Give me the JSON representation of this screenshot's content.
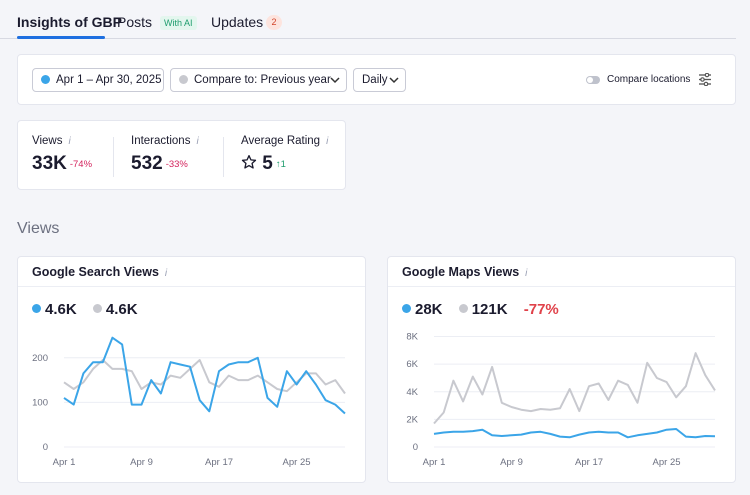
{
  "tabs": [
    {
      "label": "Insights of GBP"
    },
    {
      "label": "Posts",
      "badge": "With AI"
    },
    {
      "label": "Updates",
      "badge": "2"
    }
  ],
  "filters": {
    "date_range": "Apr 1 – Apr 30, 2025",
    "compare": "Compare to: Previous year",
    "granularity": "Daily",
    "compare_locations": "Compare locations"
  },
  "kpis": {
    "views": {
      "label": "Views",
      "value": "33K",
      "delta": "-74%"
    },
    "interactions": {
      "label": "Interactions",
      "value": "532",
      "delta": "-33%"
    },
    "rating": {
      "label": "Average Rating",
      "value": "5",
      "delta": "1"
    }
  },
  "section_title": "Views",
  "colors": {
    "current": "#3ba5e8",
    "previous": "#c8c9cf",
    "accent": "#1e6fe0"
  },
  "chart_data": [
    {
      "type": "line",
      "title": "Google Search Views",
      "legend": [
        "4.6K",
        "4.6K"
      ],
      "x": [
        "Apr 1",
        "Apr 2",
        "Apr 3",
        "Apr 4",
        "Apr 5",
        "Apr 6",
        "Apr 7",
        "Apr 8",
        "Apr 9",
        "Apr 10",
        "Apr 11",
        "Apr 12",
        "Apr 13",
        "Apr 14",
        "Apr 15",
        "Apr 16",
        "Apr 17",
        "Apr 18",
        "Apr 19",
        "Apr 20",
        "Apr 21",
        "Apr 22",
        "Apr 23",
        "Apr 24",
        "Apr 25",
        "Apr 26",
        "Apr 27",
        "Apr 28",
        "Apr 29",
        "Apr 30"
      ],
      "xticks": [
        "Apr 1",
        "Apr 9",
        "Apr 17",
        "Apr 25"
      ],
      "yticks": [
        0,
        100,
        200
      ],
      "ylim": [
        0,
        260
      ],
      "series": [
        {
          "values": [
            110,
            95,
            165,
            190,
            190,
            245,
            230,
            95,
            95,
            150,
            120,
            190,
            185,
            180,
            105,
            80,
            170,
            185,
            190,
            190,
            200,
            110,
            90,
            170,
            140,
            170,
            140,
            105,
            95,
            75
          ]
        },
        {
          "values": [
            145,
            130,
            145,
            175,
            195,
            175,
            175,
            170,
            130,
            145,
            140,
            160,
            155,
            175,
            195,
            145,
            135,
            160,
            150,
            150,
            160,
            145,
            130,
            125,
            145,
            165,
            165,
            140,
            150,
            120
          ]
        }
      ]
    },
    {
      "type": "line",
      "title": "Google Maps Views",
      "legend": [
        "28K",
        "121K",
        "-77%"
      ],
      "x": [
        "Apr 1",
        "Apr 2",
        "Apr 3",
        "Apr 4",
        "Apr 5",
        "Apr 6",
        "Apr 7",
        "Apr 8",
        "Apr 9",
        "Apr 10",
        "Apr 11",
        "Apr 12",
        "Apr 13",
        "Apr 14",
        "Apr 15",
        "Apr 16",
        "Apr 17",
        "Apr 18",
        "Apr 19",
        "Apr 20",
        "Apr 21",
        "Apr 22",
        "Apr 23",
        "Apr 24",
        "Apr 25",
        "Apr 26",
        "Apr 27",
        "Apr 28",
        "Apr 29",
        "Apr 30"
      ],
      "xticks": [
        "Apr 1",
        "Apr 9",
        "Apr 17",
        "Apr 25"
      ],
      "yticks": [
        0,
        2000,
        4000,
        6000,
        8000
      ],
      "ytick_labels": [
        "0",
        "2K",
        "4K",
        "6K",
        "8K"
      ],
      "ylim": [
        0,
        8400
      ],
      "series": [
        {
          "values": [
            950,
            1050,
            1100,
            1100,
            1150,
            1250,
            850,
            800,
            850,
            900,
            1050,
            1100,
            950,
            750,
            700,
            900,
            1050,
            1100,
            1050,
            1050,
            700,
            850,
            950,
            1050,
            1250,
            1300,
            750,
            700,
            800,
            780
          ]
        },
        {
          "values": [
            1700,
            2500,
            4800,
            3300,
            5100,
            3800,
            5800,
            3200,
            2900,
            2700,
            2600,
            2750,
            2700,
            2800,
            4200,
            2600,
            4400,
            4600,
            3400,
            4800,
            4500,
            3200,
            6100,
            5000,
            4700,
            3600,
            4400,
            6800,
            5200,
            4100
          ]
        }
      ]
    }
  ]
}
